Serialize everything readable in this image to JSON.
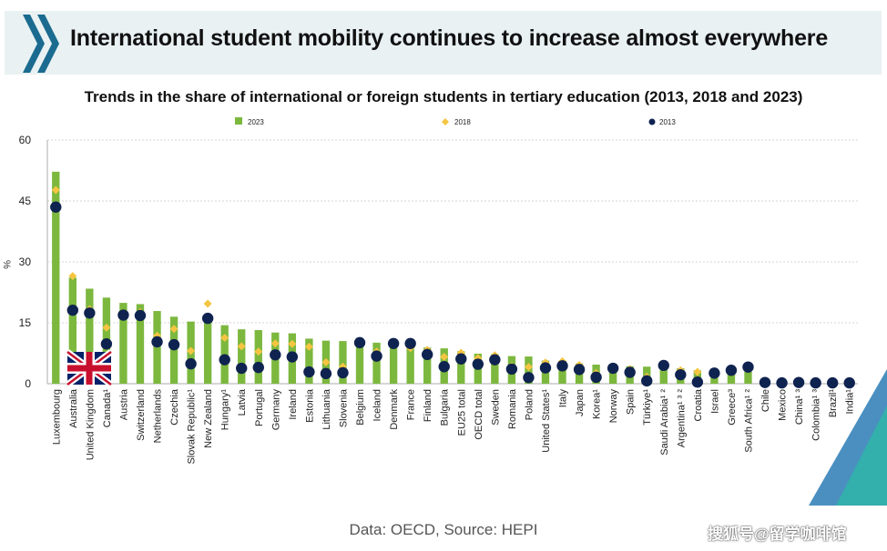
{
  "header": {
    "title": "International student mobility continues to increase almost everywhere"
  },
  "footer": {
    "source": "Data: OECD, Source: HEPI",
    "watermark": "搜狐号@留学咖啡馆"
  },
  "colors": {
    "bar_2023": "#7cb83e",
    "marker_2018": "#f5c542",
    "marker_2013": "#0f2350",
    "banner_bg": "#e9f1f3",
    "chevron": "#1a6b8f",
    "corner": "#4a8fc0"
  },
  "chart_data": {
    "type": "bar",
    "title": "Trends in the share of international or foreign students in tertiary education (2013, 2018 and 2023)",
    "ylabel": "%",
    "ylim": [
      0,
      60
    ],
    "yticks": [
      0,
      15,
      30,
      45,
      60
    ],
    "grid": true,
    "legend_position": "top",
    "categories": [
      "Luxembourg",
      "Australia",
      "United Kingdom",
      "Canada¹",
      "Austria",
      "Switzerland",
      "Netherlands",
      "Czechia",
      "Slovak Republic¹",
      "New Zealand",
      "Hungary¹",
      "Latvia",
      "Portugal",
      "Germany",
      "Ireland",
      "Estonia",
      "Lithuania",
      "Slovenia",
      "Belgium",
      "Iceland",
      "Denmark",
      "France",
      "Finland",
      "Bulgaria",
      "EU25 total",
      "OECD total",
      "Sweden",
      "Romania",
      "Poland",
      "United States¹",
      "Italy",
      "Japan",
      "Korea¹",
      "Norway",
      "Spain",
      "Türkiye¹",
      "Saudi Arabia¹ ²",
      "Argentina¹ ³ ²",
      "Croatia",
      "Israel",
      "Greece³",
      "South Africa¹ ²",
      "Chile",
      "Mexico",
      "China¹ ³",
      "Colombia¹ ³",
      "Brazil¹",
      "India¹"
    ],
    "series": [
      {
        "name": "2023",
        "kind": "bar",
        "values": [
          52.2,
          26.1,
          23.4,
          21.2,
          19.9,
          19.6,
          17.9,
          16.5,
          15.3,
          15.1,
          14.4,
          13.4,
          13.2,
          12.6,
          12.4,
          11.1,
          10.6,
          10.5,
          10.2,
          10.1,
          10.0,
          10.0,
          8.9,
          8.7,
          8.0,
          7.4,
          7.3,
          6.8,
          6.7,
          5.7,
          5.6,
          5.0,
          4.7,
          4.4,
          4.3,
          4.2,
          4.1,
          3.8,
          3.3,
          3.1,
          3.1,
          2.9,
          0.6,
          0.5,
          0.5,
          0.4,
          0.3,
          0.3
        ]
      },
      {
        "name": "2018",
        "kind": "marker",
        "values": [
          47.7,
          26.5,
          18.3,
          13.8,
          17.3,
          17.6,
          11.8,
          13.5,
          8.1,
          19.7,
          11.3,
          9.2,
          7.9,
          9.9,
          9.8,
          9.1,
          5.3,
          4.2,
          10.1,
          7.9,
          10.0,
          8.8,
          8.3,
          6.6,
          7.6,
          6.3,
          7.0,
          4.3,
          4.1,
          5.2,
          5.5,
          4.6,
          2.6,
          3.4,
          3.6,
          1.7,
          3.9,
          3.3,
          2.9,
          2.8,
          3.2,
          3.9,
          0.5,
          0.5,
          0.4,
          0.3,
          0.3,
          0.3
        ]
      },
      {
        "name": "2013",
        "kind": "marker",
        "values": [
          43.5,
          18.1,
          17.4,
          9.8,
          16.9,
          16.8,
          10.3,
          9.6,
          4.9,
          16.1,
          5.9,
          3.8,
          4.0,
          7.1,
          6.6,
          2.9,
          2.5,
          2.7,
          10.1,
          6.8,
          9.9,
          9.9,
          7.2,
          4.2,
          6.1,
          4.8,
          5.9,
          3.6,
          1.5,
          3.9,
          4.4,
          3.5,
          1.6,
          3.8,
          2.8,
          0.7,
          4.5,
          2.2,
          0.4,
          2.6,
          3.3,
          4.1,
          0.3,
          0.2,
          0.3,
          0.2,
          0.2,
          0.2
        ]
      }
    ]
  }
}
